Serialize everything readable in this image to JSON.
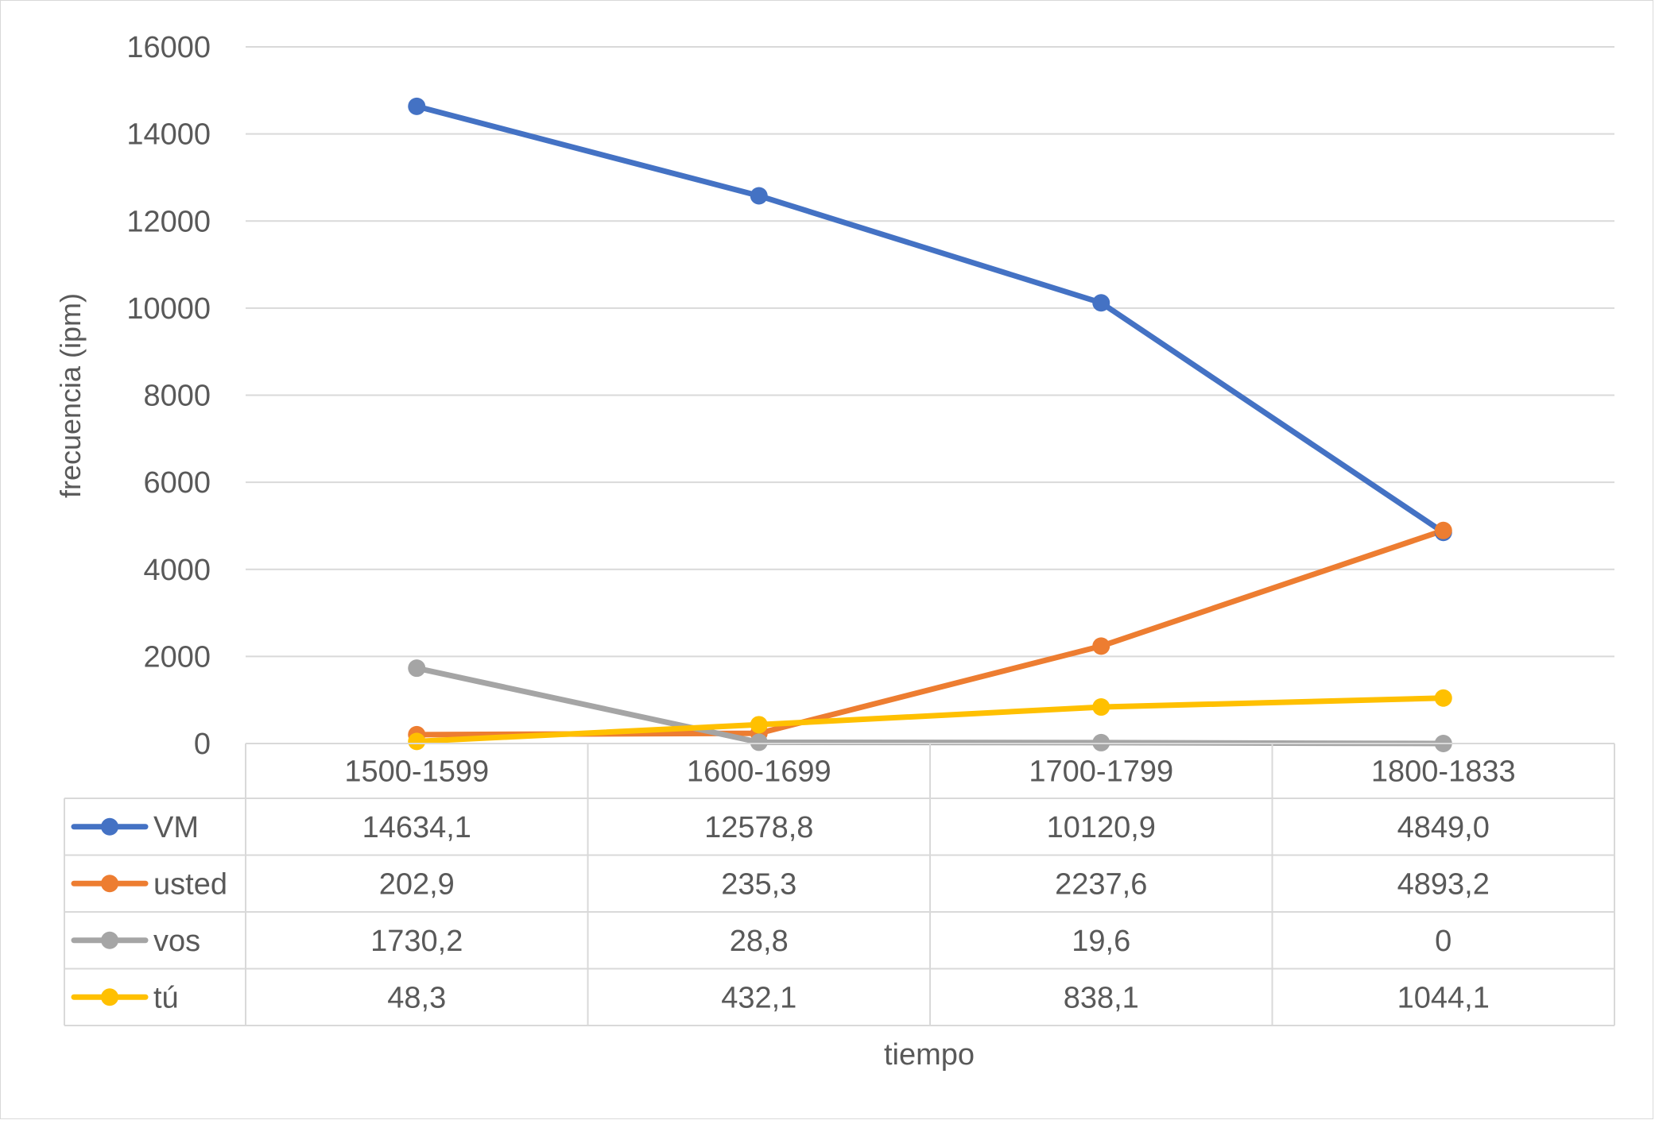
{
  "chart_data": {
    "type": "line",
    "title": "",
    "xlabel": "tiempo",
    "ylabel": "frecuencia (ipm)",
    "ylim": [
      0,
      16000
    ],
    "yticks": [
      "0",
      "2000",
      "4000",
      "6000",
      "8000",
      "10000",
      "12000",
      "14000",
      "16000"
    ],
    "grid": "horizontal",
    "legend": "data-table",
    "categories": [
      "1500-1599",
      "1600-1699",
      "1700-1799",
      "1800-1833"
    ],
    "series": [
      {
        "name": "VM",
        "color": "#4472c4",
        "values": [
          14634.1,
          12578.8,
          10120.9,
          4849.0
        ],
        "labels": [
          "14634,1",
          "12578,8",
          "10120,9",
          "4849,0"
        ]
      },
      {
        "name": "usted",
        "color": "#ed7d31",
        "values": [
          202.9,
          235.3,
          2237.6,
          4893.2
        ],
        "labels": [
          "202,9",
          "235,3",
          "2237,6",
          "4893,2"
        ]
      },
      {
        "name": "vos",
        "color": "#a5a5a5",
        "values": [
          1730.2,
          28.8,
          19.6,
          0
        ],
        "labels": [
          "1730,2",
          "28,8",
          "19,6",
          "0"
        ]
      },
      {
        "name": "tú",
        "color": "#ffc000",
        "values": [
          48.3,
          432.1,
          838.1,
          1044.1
        ],
        "labels": [
          "48,3",
          "432,1",
          "838,1",
          "1044,1"
        ]
      }
    ]
  }
}
